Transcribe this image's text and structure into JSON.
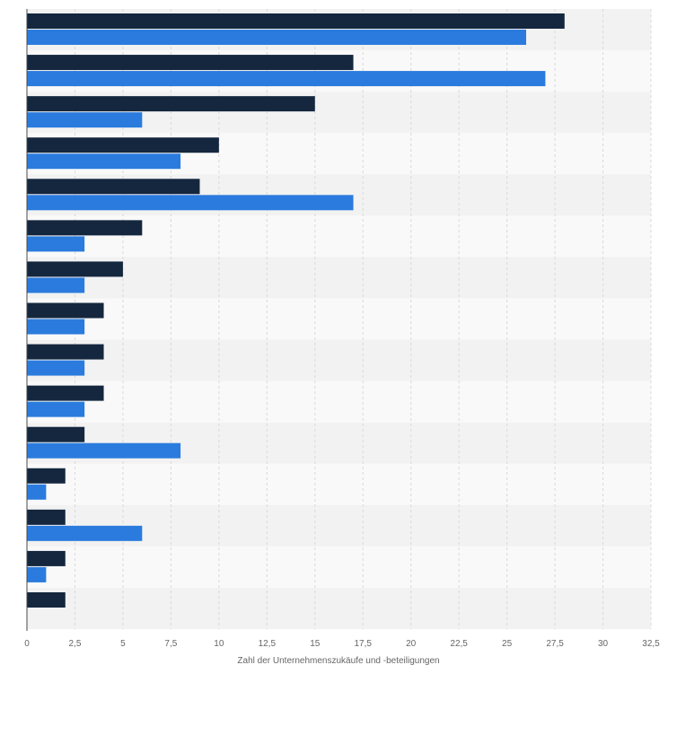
{
  "chart_data": {
    "type": "bar",
    "orientation": "horizontal",
    "xlabel": "Zahl der Unternehmenszukäufe und -beteiligungen",
    "xlim": [
      0,
      32.5
    ],
    "ticks": [
      0,
      2.5,
      5,
      7.5,
      10,
      12.5,
      15,
      17.5,
      20,
      22.5,
      25,
      27.5,
      30,
      32.5
    ],
    "tick_labels": [
      "0",
      "2,5",
      "5",
      "7,5",
      "10",
      "12,5",
      "15",
      "17,5",
      "20",
      "22,5",
      "25",
      "27,5",
      "30",
      "32,5"
    ],
    "grid": true,
    "legend": "none",
    "series": [
      {
        "color": "#14273f",
        "values": [
          28,
          17,
          15,
          10,
          9,
          6,
          5,
          4,
          4,
          4,
          3,
          2,
          2,
          2,
          2
        ]
      },
      {
        "color": "#2b7bde",
        "values": [
          26,
          27,
          6,
          8,
          17,
          3,
          3,
          3,
          3,
          3,
          8,
          1,
          6,
          1,
          null
        ]
      }
    ]
  }
}
